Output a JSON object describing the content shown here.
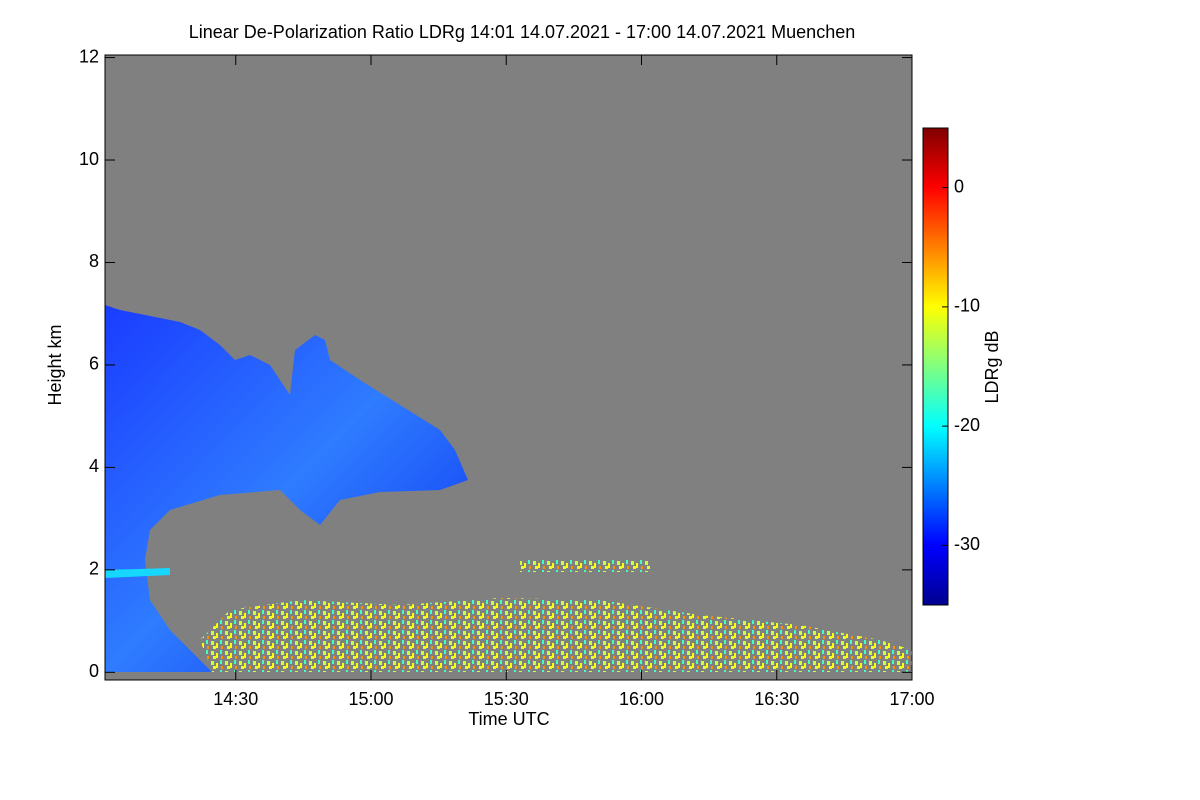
{
  "chart_data": {
    "type": "heatmap",
    "title": "Linear De-Polarization Ratio LDRg   14:01 14.07.2021 - 17:00 14.07.2021 Muenchen",
    "x_label": "Time UTC",
    "y_label": "Height km",
    "xlim": [
      841,
      1020
    ],
    "xticks": [
      {
        "value": 870,
        "label": "14:30"
      },
      {
        "value": 900,
        "label": "15:00"
      },
      {
        "value": 930,
        "label": "15:30"
      },
      {
        "value": 960,
        "label": "16:00"
      },
      {
        "value": 990,
        "label": "16:30"
      },
      {
        "value": 1020,
        "label": "17:00"
      }
    ],
    "ylim": [
      -0.15,
      12.05
    ],
    "yticks": [
      0,
      2,
      4,
      6,
      8,
      10,
      12
    ],
    "colorbar": {
      "label": "LDRg dB",
      "lim": [
        -35,
        5
      ],
      "ticks": [
        0,
        -10,
        -20,
        -30
      ],
      "colormap": [
        "#00008f",
        "#0000ff",
        "#0080ff",
        "#00ffff",
        "#80ff80",
        "#ffff00",
        "#ff8000",
        "#ff0000",
        "#800000"
      ]
    },
    "background_color": "#808080"
  }
}
